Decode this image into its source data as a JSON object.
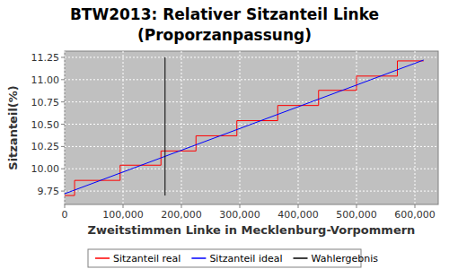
{
  "chart_data": {
    "type": "line",
    "title": "BTW2013: Relativer Sitzanteil Linke",
    "subtitle": "(Proporzanpassung)",
    "x_label": "Zweitstimmen Linke in Mecklenburg-Vorpommern",
    "y_label": "Sitzanteil(%)",
    "xlim": [
      0,
      640000
    ],
    "ylim": [
      9.6,
      11.32
    ],
    "xticks": [
      0,
      {
        "value": 100000,
        "label": "100,000"
      },
      {
        "value": 200000,
        "label": "200,000"
      },
      {
        "value": 300000,
        "label": "300,000"
      },
      {
        "value": 400000,
        "label": "400,000"
      },
      {
        "value": 500000,
        "label": "500,000"
      },
      {
        "value": 600000,
        "label": "600,000"
      }
    ],
    "yticks": [
      9.75,
      {
        "value": 10,
        "label": "10.00"
      },
      10.25,
      {
        "value": 10.5,
        "label": "10.50"
      },
      10.75,
      {
        "value": 11,
        "label": "11.00"
      },
      11.25
    ],
    "grid": true,
    "legend": "bottom",
    "series": [
      {
        "name": "Sitzanteil real",
        "color": "#ff0000",
        "line_style": "step",
        "x": [
          0,
          17000,
          95000,
          165000,
          225000,
          295000,
          365000,
          435000,
          500000,
          570000,
          615000
        ],
        "values": [
          9.7,
          9.87,
          10.04,
          10.2,
          10.37,
          10.54,
          10.71,
          10.88,
          11.04,
          11.21,
          11.21
        ]
      },
      {
        "name": "Sitzanteil ideal",
        "color": "#0000ff",
        "line_style": "solid",
        "x": [
          0,
          615000
        ],
        "values": [
          9.72,
          11.22
        ]
      },
      {
        "name": "Wahlergebnis",
        "color": "#000000",
        "line_style": "solid",
        "x": [
          172000,
          172000
        ],
        "values": [
          9.7,
          11.25
        ]
      }
    ]
  }
}
